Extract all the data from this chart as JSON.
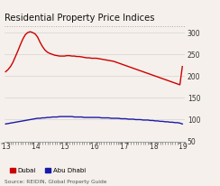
{
  "title": "Residential Property Price Indices",
  "source": "Source: REIDIN, Global Property Guide",
  "xlabel_ticks": [
    "'13",
    "'14",
    "'15",
    "'16",
    "'17",
    "'18",
    "'19"
  ],
  "xtick_positions": [
    0,
    12,
    24,
    36,
    48,
    60,
    72
  ],
  "ylim": [
    50,
    315
  ],
  "yticks": [
    50,
    100,
    150,
    200,
    250,
    300
  ],
  "dubai_color": "#cc0000",
  "abudhabi_color": "#1a1aaa",
  "background_color": "#f5f0eb",
  "dubai_values": [
    210,
    215,
    222,
    232,
    245,
    258,
    272,
    285,
    295,
    300,
    302,
    300,
    297,
    290,
    278,
    268,
    260,
    255,
    252,
    250,
    248,
    247,
    246,
    246,
    246,
    247,
    247,
    246,
    246,
    245,
    245,
    244,
    243,
    242,
    242,
    241,
    241,
    241,
    240,
    239,
    238,
    237,
    236,
    235,
    234,
    232,
    230,
    228,
    226,
    224,
    222,
    220,
    218,
    216,
    214,
    212,
    210,
    208,
    206,
    204,
    202,
    200,
    198,
    196,
    194,
    192,
    190,
    188,
    186,
    184,
    182,
    180,
    222
  ],
  "abudhabi_values": [
    90,
    91,
    92,
    93,
    94,
    95,
    96,
    97,
    98,
    99,
    100,
    101,
    102,
    103,
    103,
    104,
    104,
    105,
    105,
    106,
    106,
    106,
    107,
    107,
    107,
    107,
    107,
    107,
    106,
    106,
    106,
    106,
    105,
    105,
    105,
    105,
    105,
    105,
    105,
    104,
    104,
    104,
    104,
    103,
    103,
    103,
    103,
    102,
    102,
    102,
    101,
    101,
    101,
    100,
    100,
    100,
    99,
    99,
    99,
    98,
    98,
    97,
    97,
    96,
    96,
    95,
    95,
    94,
    94,
    93,
    93,
    92,
    90
  ]
}
